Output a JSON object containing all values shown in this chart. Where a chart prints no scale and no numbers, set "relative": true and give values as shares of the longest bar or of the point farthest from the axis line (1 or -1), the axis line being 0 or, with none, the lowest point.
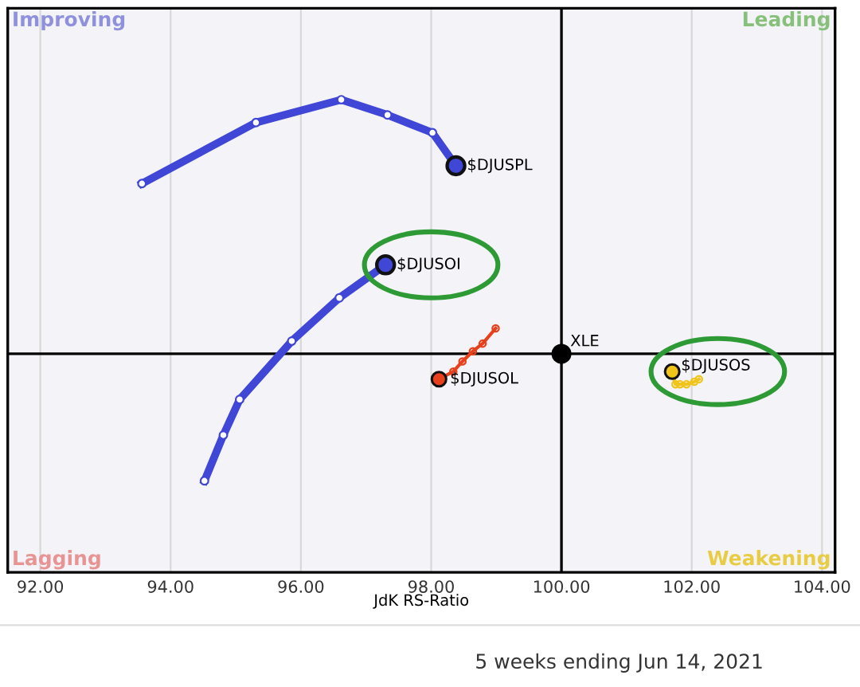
{
  "chart_data": {
    "type": "line",
    "relative": true,
    "xlabel": "JdK RS-Ratio",
    "xlim": [
      91.5,
      104.2
    ],
    "xticks": [
      {
        "value": 92,
        "label": "92.00"
      },
      {
        "value": 94,
        "label": "94.00"
      },
      {
        "value": 96,
        "label": "96.00"
      },
      {
        "value": 98,
        "label": "98.00"
      },
      {
        "value": 100,
        "label": "100.00"
      },
      {
        "value": 102,
        "label": "102.00"
      },
      {
        "value": 104,
        "label": "104.00"
      }
    ],
    "tick_labels": "x",
    "grid": "x",
    "marker": "circle",
    "line_style": "solid",
    "ref_lines": [
      {
        "axis": "x",
        "value": 100,
        "color": "#000000"
      },
      {
        "axis": "y",
        "value": 0,
        "color": "#000000"
      }
    ],
    "series": [
      {
        "name": "$DJUSPL",
        "color": "#4046d6",
        "x": [
          93.56,
          95.31,
          96.62,
          97.33,
          98.02,
          98.38
        ],
        "values": [
          0.67,
          0.91,
          1.0,
          0.94,
          0.87,
          0.74
        ]
      },
      {
        "name": "$DJUSOI",
        "color": "#4046d6",
        "x": [
          94.52,
          94.81,
          95.06,
          95.86,
          96.59,
          97.3
        ],
        "values": [
          -0.5,
          -0.32,
          -0.18,
          0.05,
          0.22,
          0.35
        ]
      },
      {
        "name": "$DJUSOL",
        "color": "#e8401c",
        "x": [
          98.99,
          98.79,
          98.64,
          98.48,
          98.34,
          98.12
        ],
        "values": [
          0.1,
          0.04,
          0.01,
          -0.03,
          -0.07,
          -0.1
        ]
      },
      {
        "name": "$DJUSOS",
        "color": "#f0c419",
        "x": [
          102.11,
          102.04,
          101.92,
          101.82,
          101.75,
          101.7
        ],
        "values": [
          -0.1,
          -0.11,
          -0.12,
          -0.12,
          -0.12,
          -0.07
        ]
      },
      {
        "name": "XLE",
        "color": "#000000",
        "type": "scatter",
        "x": [
          100
        ],
        "values": [
          0
        ]
      }
    ],
    "annotations": [
      "Improving",
      "Leading",
      "Lagging",
      "Weakening",
      "5 weeks ending Jun 14, 2021"
    ]
  }
}
